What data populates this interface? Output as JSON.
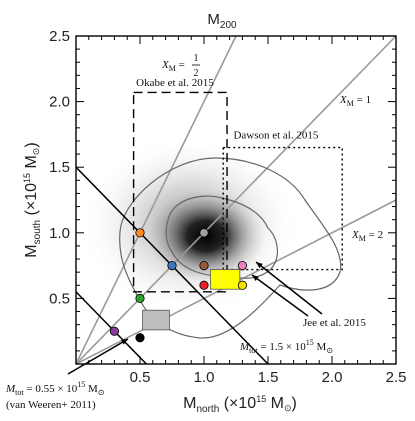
{
  "chart_data": {
    "type": "scatter",
    "title": "M",
    "title_sub": "200",
    "xlabel_main": "M",
    "xlabel_sub": "north",
    "xlabel_unit": "(×10",
    "xlabel_exp": "15",
    "xlabel_tail": "M",
    "xlabel_close": ")",
    "ylabel_main": "M",
    "ylabel_sub": "south",
    "ylabel_unit": "(×10",
    "ylabel_exp": "15",
    "ylabel_tail": "M",
    "ylabel_close": ")",
    "xlim": [
      0,
      2.5
    ],
    "ylim": [
      0.0,
      2.5
    ],
    "xticks": [
      {
        "value": 0.5,
        "label": "0.5"
      },
      {
        "value": 1.0,
        "label": "1.0"
      },
      {
        "value": 1.5,
        "label": "1.5"
      },
      {
        "value": 2.0,
        "label": "2.0"
      },
      {
        "value": 2.5,
        "label": "2.5"
      }
    ],
    "yticks": [
      {
        "value": 0.5,
        "label": "0.5"
      },
      {
        "value": 1.0,
        "label": "1.0"
      },
      {
        "value": 1.5,
        "label": "1.5"
      },
      {
        "value": 2.0,
        "label": "2.0"
      },
      {
        "value": 2.5,
        "label": "2.5"
      }
    ],
    "ratio_lines": [
      {
        "ratio": 2.0,
        "label_pre": "X",
        "label_sub": "M",
        "label_eq": " = ",
        "label_frac_num": "1",
        "label_frac_den": "2",
        "fraction": true
      },
      {
        "ratio": 1.0,
        "label_pre": "X",
        "label_sub": "M",
        "label_eq": " = 1",
        "fraction": false
      },
      {
        "ratio": 0.5,
        "label_pre": "X",
        "label_sub": "M",
        "label_eq": " = 2",
        "fraction": false
      }
    ],
    "total_mass_lines": [
      {
        "mtot": 1.5,
        "label_pre": "M",
        "label_sub": "tot",
        "label_eq": " = 1.5 × 10",
        "label_exp": "15",
        "label_unit": " M"
      },
      {
        "mtot": 0.55,
        "label_pre": "M",
        "label_sub": "tot",
        "label_eq": " = 0.55 × 10",
        "label_exp": "15",
        "label_unit": " M",
        "label_ref": "(van Weeren+ 2011)"
      }
    ],
    "boxes": [
      {
        "name": "Okabe et al. 2015",
        "x": [
          0.45,
          1.18
        ],
        "y": [
          0.55,
          2.07
        ],
        "style": "dashed"
      },
      {
        "name": "Dawson et al. 2015",
        "x": [
          1.15,
          2.08
        ],
        "y": [
          0.72,
          1.65
        ],
        "style": "dotted"
      }
    ],
    "filled_regions": [
      {
        "name": "jee",
        "x": [
          1.05,
          1.28
        ],
        "y": [
          0.57,
          0.72
        ],
        "color": "#ffff00"
      },
      {
        "name": "van-weeren",
        "x": [
          0.52,
          0.73
        ],
        "y": [
          0.26,
          0.41
        ],
        "color": "#bdbdbd"
      }
    ],
    "points": [
      {
        "x": 0.5,
        "y": 1.0,
        "color": "#ff8c1a"
      },
      {
        "x": 0.75,
        "y": 0.75,
        "color": "#3a78c0"
      },
      {
        "x": 1.0,
        "y": 1.0,
        "color": "#a0a0a0"
      },
      {
        "x": 1.0,
        "y": 0.75,
        "color": "#9a5c3a"
      },
      {
        "x": 1.0,
        "y": 0.6,
        "color": "#e8202a"
      },
      {
        "x": 1.3,
        "y": 0.75,
        "color": "#f07fc0"
      },
      {
        "x": 1.3,
        "y": 0.6,
        "color": "#f5e000"
      },
      {
        "x": 0.5,
        "y": 0.5,
        "color": "#2ea02e"
      },
      {
        "x": 0.3,
        "y": 0.25,
        "color": "#8a3aa0"
      },
      {
        "x": 0.5,
        "y": 0.2,
        "color": "#000000"
      }
    ],
    "density_peak": {
      "x": 1.02,
      "y": 1.0
    },
    "annotations": {
      "okabe": "Okabe et al. 2015",
      "dawson": "Dawson et al. 2015",
      "jee": "Jee et al. 2015"
    },
    "colors": {
      "line": "#9a9a9a",
      "mass_line": "#000000",
      "contour": "#666666"
    }
  }
}
